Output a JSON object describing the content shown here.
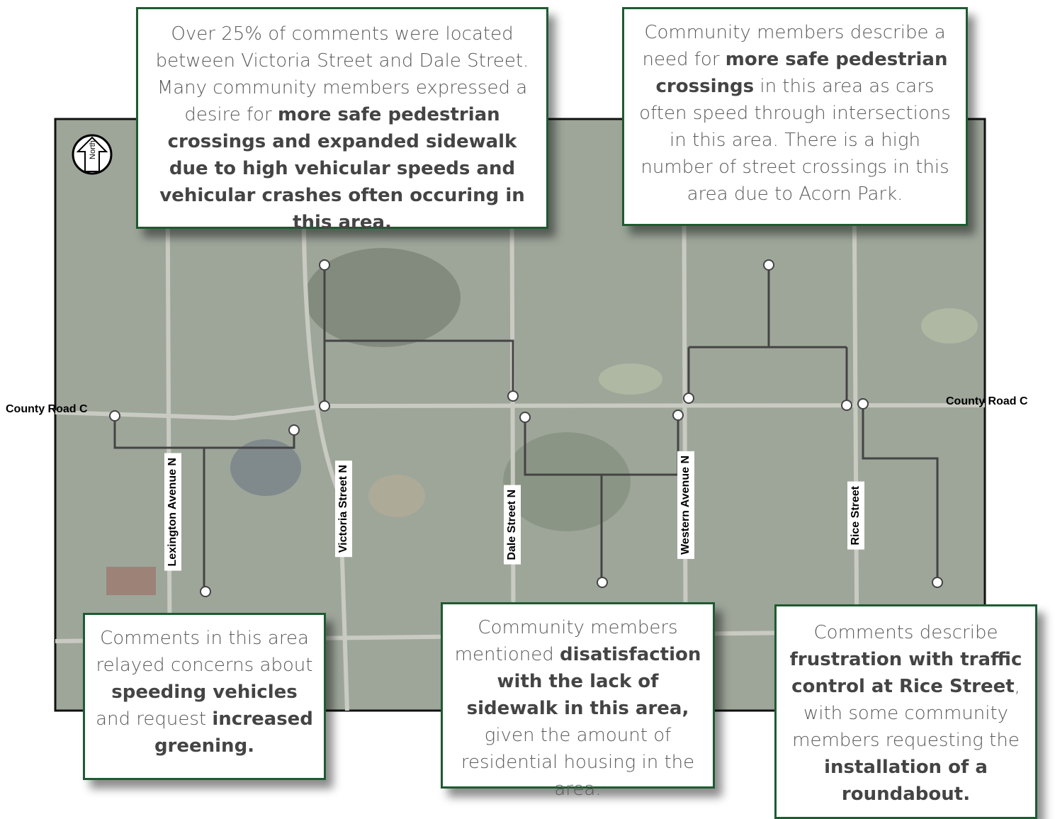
{
  "map": {
    "north_label": "North",
    "road_labels": [
      "County Road C",
      "County Road C"
    ],
    "street_labels": [
      "Lexington Avenue N",
      "Victoria Street N",
      "Dale Street N",
      "Western Avenue N",
      "Rice Street"
    ],
    "callouts": [
      {
        "segments": [
          {
            "text": "Over 25% of comments were located between Victoria Street and Dale Street. Many community members expressed a desire for ",
            "bold": false
          },
          {
            "text": "more safe pedestrian crossings and expanded sidewalk due to high vehicular speeds and vehicular crashes often occuring in this area.",
            "bold": true
          }
        ]
      },
      {
        "segments": [
          {
            "text": "Community members describe a need for ",
            "bold": false
          },
          {
            "text": "more safe pedestrian crossings",
            "bold": true
          },
          {
            "text": " in this area as cars often speed through intersections in this area. There is a high number of street crossings in this area due to Acorn Park.",
            "bold": false
          }
        ]
      },
      {
        "segments": [
          {
            "text": "Comments in this area relayed concerns about ",
            "bold": false
          },
          {
            "text": "speeding vehicles",
            "bold": true
          },
          {
            "text": " and request ",
            "bold": false
          },
          {
            "text": "increased greening.",
            "bold": true
          }
        ]
      },
      {
        "segments": [
          {
            "text": "Community members mentioned ",
            "bold": false
          },
          {
            "text": "disatisfaction with the lack of sidewalk in this area,",
            "bold": true
          },
          {
            "text": " given the amount of residential housing in the area.",
            "bold": false
          }
        ]
      },
      {
        "segments": [
          {
            "text": "Comments describe ",
            "bold": false
          },
          {
            "text": "frustration with traffic control at Rice Street",
            "bold": true
          },
          {
            "text": ", with some community members requesting the ",
            "bold": false
          },
          {
            "text": "installation of  a roundabout.",
            "bold": true
          }
        ]
      }
    ]
  }
}
